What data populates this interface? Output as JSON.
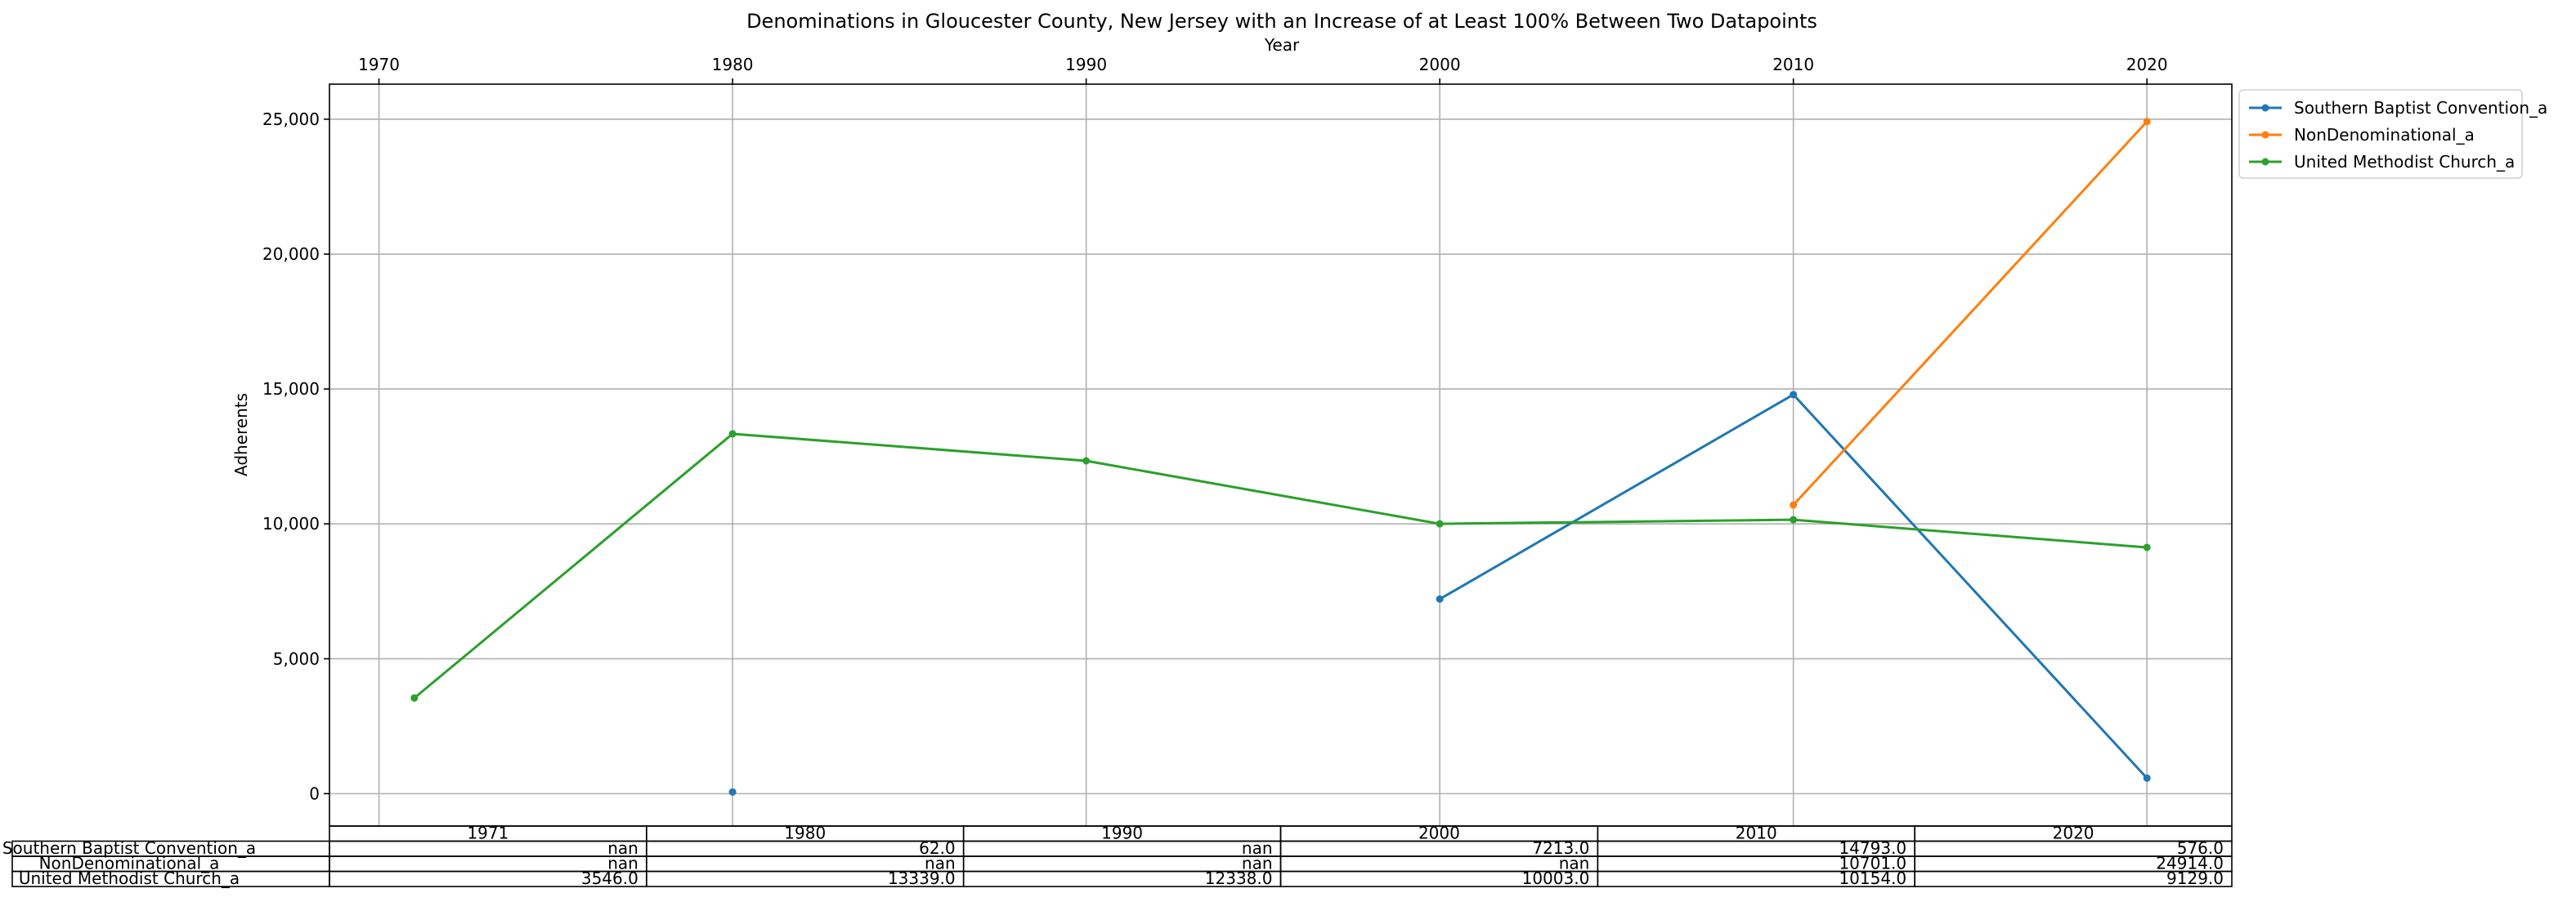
{
  "chart_data": {
    "type": "line",
    "title": "Denominations in Gloucester County, New Jersey with an Increase of at Least 100% Between Two Datapoints",
    "xlabel": "Year",
    "ylabel": "Adherents",
    "x_ticks": [
      "1970",
      "1980",
      "1990",
      "2000",
      "2010",
      "2020"
    ],
    "y_ticks": [
      "0",
      "5,000",
      "10,000",
      "15,000",
      "20,000",
      "25,000"
    ],
    "ylim": [
      -1200,
      26300
    ],
    "xlim": [
      1968.6,
      2022.4
    ],
    "grid": true,
    "legend_position": "outside top-right",
    "x": [
      1971,
      1980,
      1990,
      2000,
      2010,
      2020
    ],
    "series": [
      {
        "name": "Southern Baptist Convention_a",
        "color": "#1f77b4",
        "values": [
          null,
          62,
          null,
          7213,
          14793,
          576
        ]
      },
      {
        "name": "NonDenominational_a",
        "color": "#ff7f0e",
        "values": [
          null,
          null,
          null,
          null,
          10701,
          24914
        ]
      },
      {
        "name": "United Methodist Church_a",
        "color": "#2ca02c",
        "values": [
          3546,
          13339,
          12338,
          10003,
          10154,
          9129
        ]
      }
    ],
    "table": {
      "columns": [
        "1971",
        "1980",
        "1990",
        "2000",
        "2010",
        "2020"
      ],
      "rows": [
        {
          "label": "Southern Baptist Convention_a",
          "cells": [
            "nan",
            "62.0",
            "nan",
            "7213.0",
            "14793.0",
            "576.0"
          ]
        },
        {
          "label": "NonDenominational_a",
          "cells": [
            "nan",
            "nan",
            "nan",
            "nan",
            "10701.0",
            "24914.0"
          ]
        },
        {
          "label": "United Methodist Church_a",
          "cells": [
            "3546.0",
            "13339.0",
            "12338.0",
            "10003.0",
            "10154.0",
            "9129.0"
          ]
        }
      ]
    }
  }
}
